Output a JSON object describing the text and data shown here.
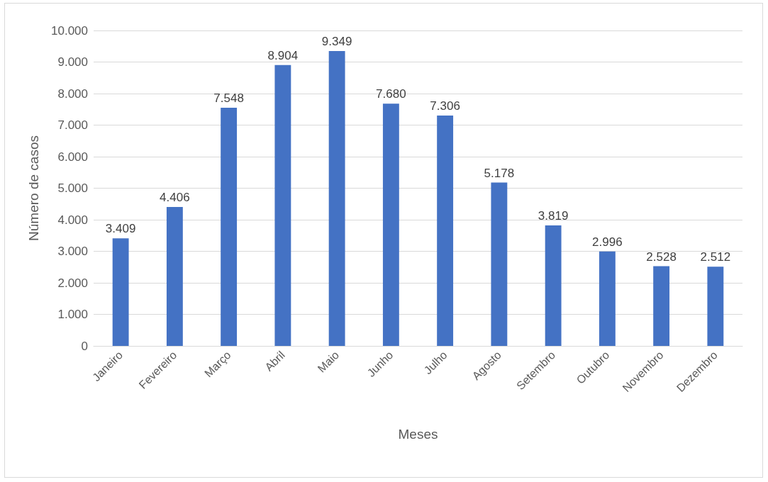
{
  "chart_data": {
    "type": "bar",
    "xlabel": "Meses",
    "ylabel": "Número de casos",
    "categories": [
      "Janeiro",
      "Fevereiro",
      "Março",
      "Abril",
      "Maio",
      "Junho",
      "Julho",
      "Agosto",
      "Setembro",
      "Outubro",
      "Novembro",
      "Dezembro"
    ],
    "values": [
      3409,
      4406,
      7548,
      8904,
      9349,
      7680,
      7306,
      5178,
      3819,
      2996,
      2528,
      2512
    ],
    "value_labels": [
      "3.409",
      "4.406",
      "7.548",
      "8.904",
      "9.349",
      "7.680",
      "7.306",
      "5.178",
      "3.819",
      "2.996",
      "2.528",
      "2.512"
    ],
    "color": "#4472c4",
    "ylim": [
      0,
      10000
    ],
    "yticks": [
      0,
      {
        "value": 1000,
        "label": "1.000"
      },
      {
        "value": 2000,
        "label": "2.000"
      },
      {
        "value": 3000,
        "label": "3.000"
      },
      {
        "value": 4000,
        "label": "4.000"
      },
      {
        "value": 5000,
        "label": "5.000"
      },
      {
        "value": 6000,
        "label": "6.000"
      },
      {
        "value": 7000,
        "label": "7.000"
      },
      {
        "value": 8000,
        "label": "8.000"
      },
      {
        "value": 9000,
        "label": "9.000"
      },
      {
        "value": 10000,
        "label": "10.000"
      }
    ],
    "grid": "y"
  }
}
